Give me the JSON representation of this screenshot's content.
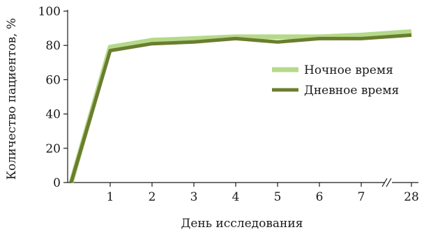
{
  "chart_data": {
    "type": "line",
    "x": [
      "0",
      "1",
      "2",
      "3",
      "4",
      "5",
      "6",
      "7",
      "28"
    ],
    "x_tick_labels": [
      "1",
      "2",
      "3",
      "4",
      "5",
      "6",
      "7",
      "28"
    ],
    "axis_break_between": [
      "7",
      "28"
    ],
    "xlabel": "День исследования",
    "ylabel": "Количество пациентов, %",
    "ylim": [
      0,
      100
    ],
    "y_ticks": [
      "0",
      "20",
      "40",
      "60",
      "80",
      "100"
    ],
    "grid": false,
    "legend_position": "right-middle",
    "series": [
      {
        "name": "Ночное время",
        "color": "#b5d98a",
        "values": [
          0,
          79,
          83,
          84,
          85,
          85,
          85,
          86,
          88
        ]
      },
      {
        "name": "Дневное время",
        "color": "#6b7d2e",
        "values": [
          0,
          77,
          81,
          82,
          84,
          82,
          84,
          84,
          86
        ]
      }
    ]
  }
}
